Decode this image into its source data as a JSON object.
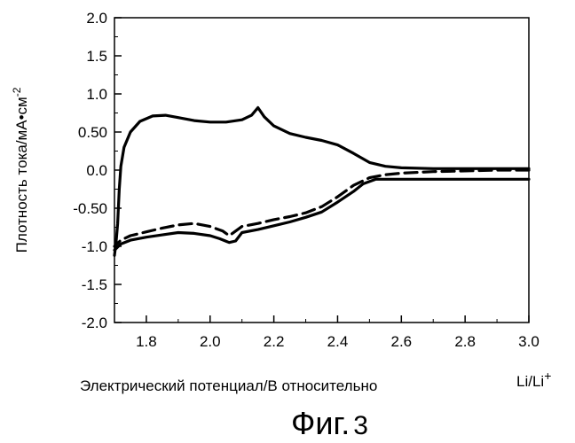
{
  "chart_data": {
    "type": "line",
    "xlabel": "Электрический потенциал/В относительно",
    "xlabel_suffix": "Li/Li",
    "xlabel_suffix_sup": "+",
    "ylabel": "Плотность тока/мА•см",
    "ylabel_sup": "-2",
    "xlim": [
      1.7,
      3.0
    ],
    "ylim": [
      -2.0,
      2.0
    ],
    "x_ticks": [
      1.8,
      2.0,
      2.2,
      2.4,
      2.6,
      2.8,
      3.0
    ],
    "x_tick_labels": [
      "1.8",
      "2.0",
      "2.2",
      "2.4",
      "2.6",
      "2.8",
      "3.0"
    ],
    "y_ticks": [
      2.0,
      1.5,
      1.0,
      0.5,
      0.0,
      -0.5,
      -1.0,
      -1.5,
      -2.0
    ],
    "y_tick_labels": [
      "2.0",
      "1.5",
      "1.0",
      "0.50",
      "0.0",
      "-0.50",
      "-1.0",
      "-1.5",
      "-2.0"
    ],
    "grid": false,
    "series": [
      {
        "style": "solid",
        "color": "#000000",
        "points": [
          [
            1.7,
            -1.12
          ],
          [
            1.705,
            -0.95
          ],
          [
            1.71,
            -0.7
          ],
          [
            1.715,
            -0.25
          ],
          [
            1.72,
            0.05
          ],
          [
            1.73,
            0.3
          ],
          [
            1.75,
            0.5
          ],
          [
            1.78,
            0.64
          ],
          [
            1.82,
            0.71
          ],
          [
            1.86,
            0.72
          ],
          [
            1.9,
            0.69
          ],
          [
            1.95,
            0.65
          ],
          [
            2.0,
            0.63
          ],
          [
            2.05,
            0.63
          ],
          [
            2.1,
            0.66
          ],
          [
            2.13,
            0.72
          ],
          [
            2.15,
            0.82
          ],
          [
            2.17,
            0.7
          ],
          [
            2.2,
            0.58
          ],
          [
            2.25,
            0.48
          ],
          [
            2.3,
            0.43
          ],
          [
            2.35,
            0.39
          ],
          [
            2.4,
            0.33
          ],
          [
            2.45,
            0.22
          ],
          [
            2.5,
            0.1
          ],
          [
            2.55,
            0.05
          ],
          [
            2.6,
            0.03
          ],
          [
            2.7,
            0.02
          ],
          [
            2.8,
            0.02
          ],
          [
            2.9,
            0.02
          ],
          [
            3.0,
            0.02
          ]
        ]
      },
      {
        "style": "solid",
        "color": "#000000",
        "points": [
          [
            3.0,
            -0.12
          ],
          [
            2.9,
            -0.12
          ],
          [
            2.8,
            -0.12
          ],
          [
            2.7,
            -0.12
          ],
          [
            2.6,
            -0.12
          ],
          [
            2.52,
            -0.12
          ],
          [
            2.48,
            -0.18
          ],
          [
            2.45,
            -0.28
          ],
          [
            2.4,
            -0.42
          ],
          [
            2.35,
            -0.55
          ],
          [
            2.3,
            -0.62
          ],
          [
            2.25,
            -0.68
          ],
          [
            2.2,
            -0.73
          ],
          [
            2.15,
            -0.78
          ],
          [
            2.1,
            -0.82
          ],
          [
            2.08,
            -0.93
          ],
          [
            2.06,
            -0.95
          ],
          [
            2.03,
            -0.9
          ],
          [
            2.0,
            -0.86
          ],
          [
            1.95,
            -0.83
          ],
          [
            1.9,
            -0.82
          ],
          [
            1.85,
            -0.85
          ],
          [
            1.8,
            -0.88
          ],
          [
            1.75,
            -0.92
          ],
          [
            1.72,
            -0.97
          ],
          [
            1.7,
            -1.05
          ]
        ]
      },
      {
        "style": "dashed",
        "color": "#000000",
        "points": [
          [
            3.0,
            0.0
          ],
          [
            2.9,
            0.0
          ],
          [
            2.8,
            -0.01
          ],
          [
            2.7,
            -0.02
          ],
          [
            2.6,
            -0.04
          ],
          [
            2.55,
            -0.06
          ],
          [
            2.5,
            -0.1
          ],
          [
            2.45,
            -0.2
          ],
          [
            2.4,
            -0.35
          ],
          [
            2.35,
            -0.48
          ],
          [
            2.3,
            -0.56
          ],
          [
            2.25,
            -0.61
          ],
          [
            2.2,
            -0.65
          ],
          [
            2.15,
            -0.7
          ],
          [
            2.1,
            -0.74
          ],
          [
            2.08,
            -0.8
          ],
          [
            2.06,
            -0.86
          ],
          [
            2.04,
            -0.8
          ],
          [
            2.0,
            -0.74
          ],
          [
            1.95,
            -0.7
          ],
          [
            1.9,
            -0.72
          ],
          [
            1.85,
            -0.76
          ],
          [
            1.8,
            -0.81
          ],
          [
            1.75,
            -0.86
          ],
          [
            1.72,
            -0.92
          ],
          [
            1.7,
            -1.0
          ]
        ]
      }
    ]
  },
  "figure": {
    "caption_main": "Фиг.",
    "caption_num": "3"
  }
}
